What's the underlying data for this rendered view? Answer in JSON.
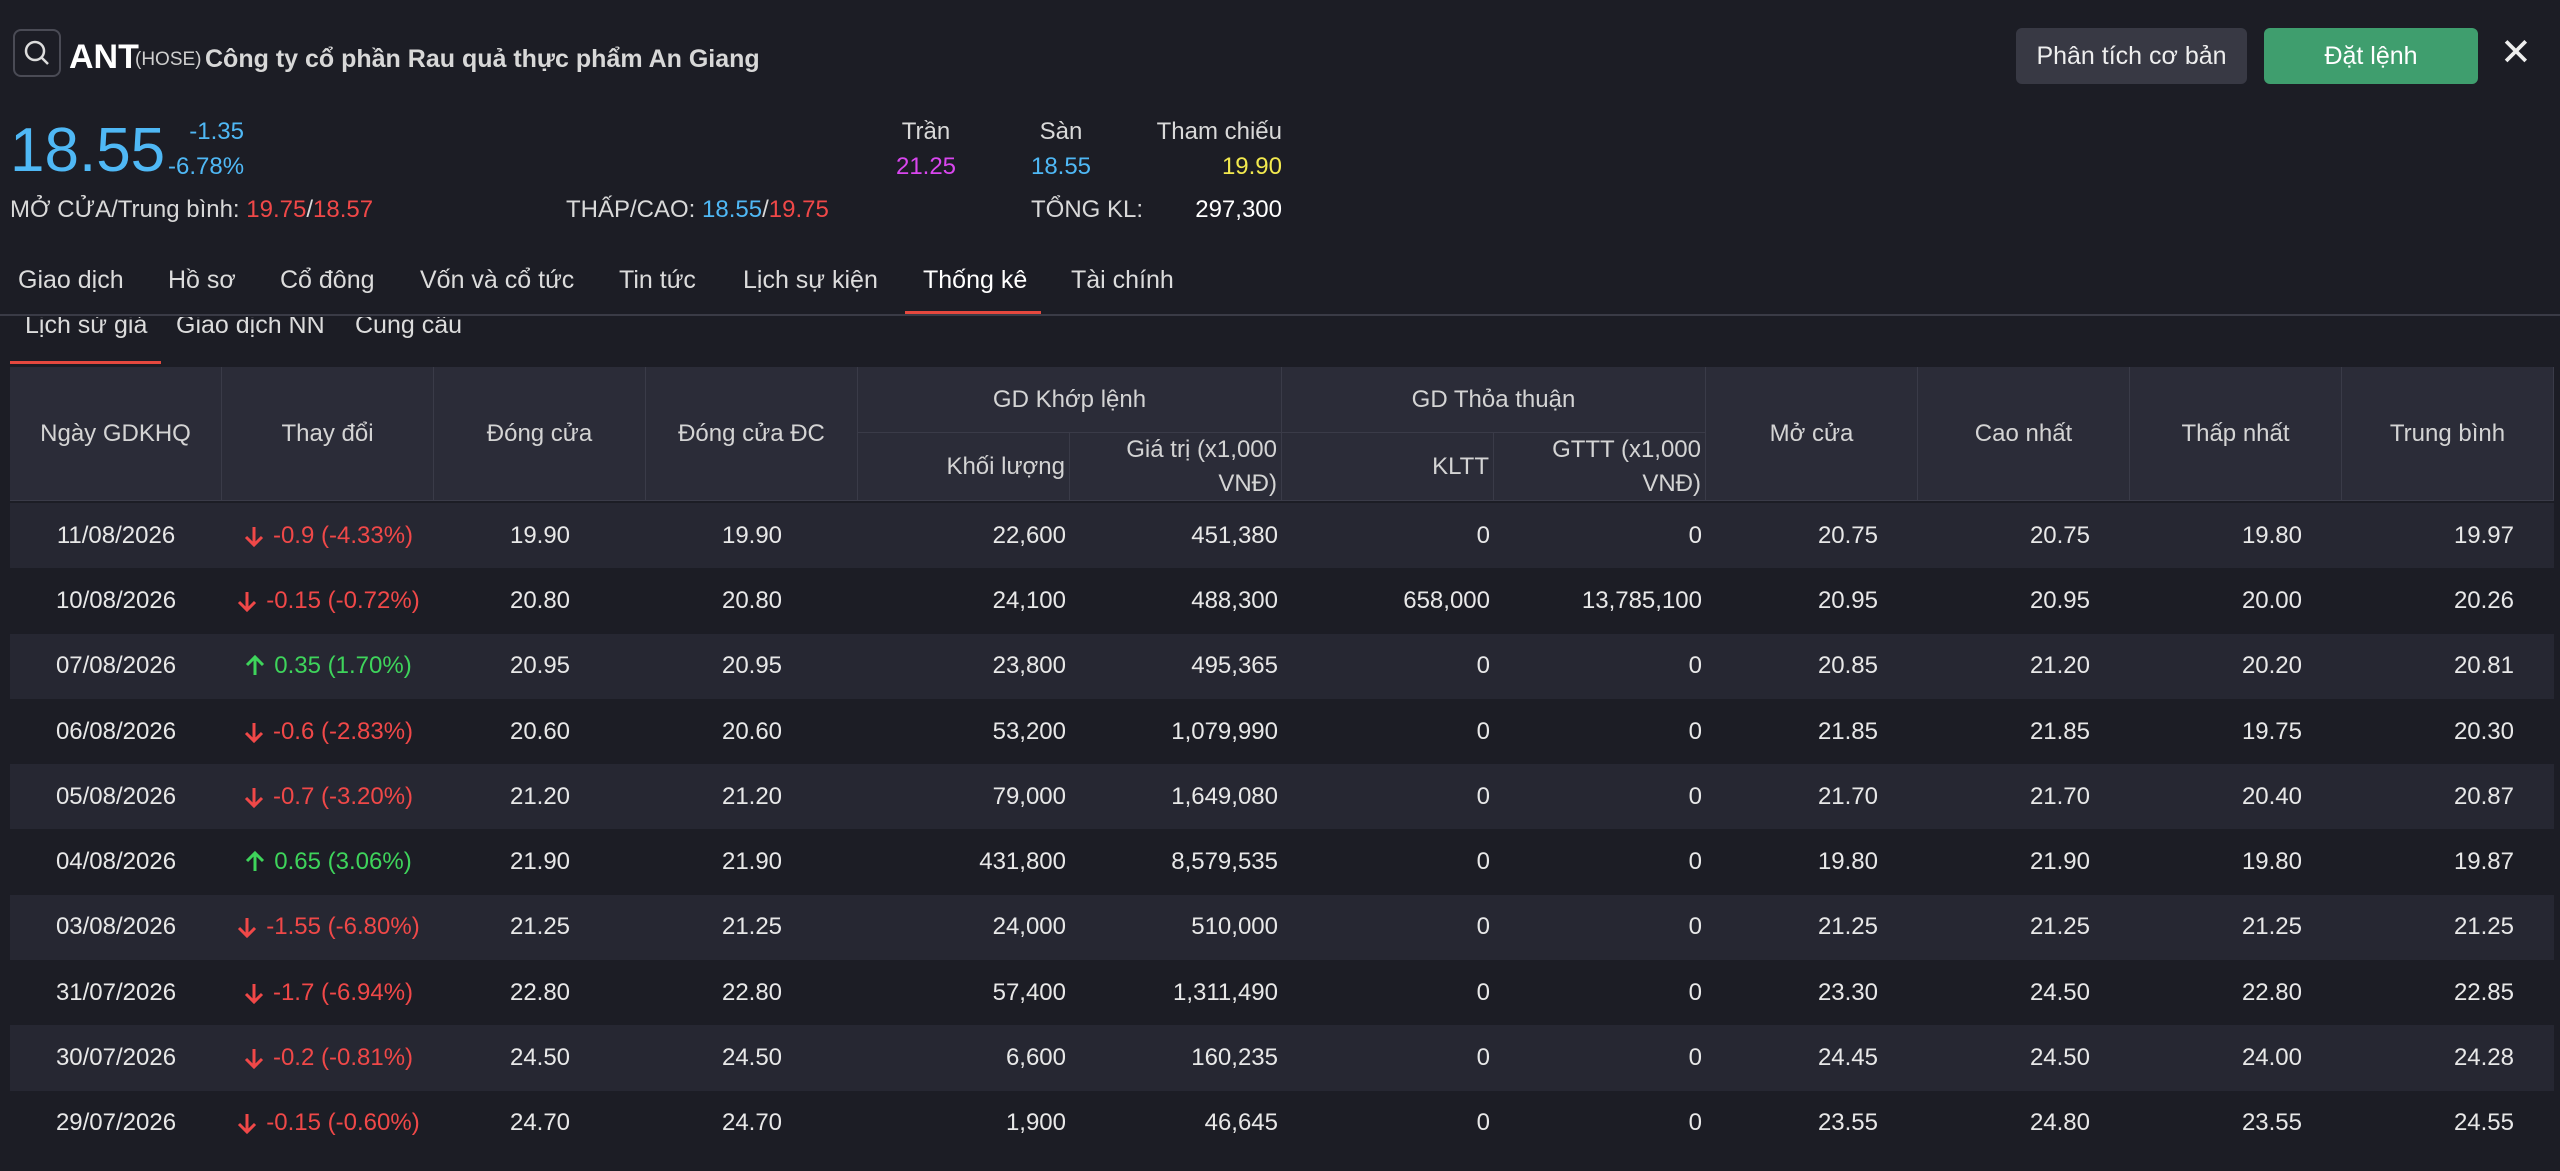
{
  "header": {
    "symbol": "ANT",
    "exchange": "(HOSE)",
    "company": "Công ty cổ phần Rau quả thực phẩm An Giang",
    "buttons": [
      "Phân tích cơ bản",
      "Đặt lệnh"
    ],
    "close": "✕"
  },
  "quote": {
    "price": "18.55",
    "change": "-1.35",
    "change_pct": "-6.78%",
    "ceiling_label": "Trần",
    "ceiling": "21.25",
    "floor_label": "Sàn",
    "floor": "18.55",
    "ref_label": "Tham chiếu",
    "ref": "19.90",
    "open_avg_label": "MỞ CỬA/Trung bình:",
    "open": "19.75",
    "avg": "18.57",
    "low_high_label": "THẤP/CAO:",
    "low": "18.55",
    "high": "19.75",
    "volume_label": "TỔNG KL:",
    "volume": "297,300",
    "separator": "/"
  },
  "tabs": [
    "Giao dịch",
    "Hồ sơ",
    "Cổ đông",
    "Vốn và cổ tức",
    "Tin tức",
    "Lịch sự kiện",
    "Thống kê",
    "Tài chính"
  ],
  "active_tab": 6,
  "subtabs": [
    "Lịch sử giá",
    "Giao dịch NN",
    "Cung cầu"
  ],
  "active_subtab": 0,
  "table": {
    "columns": [
      {
        "label": "Ngày GDKHQ"
      },
      {
        "label": "Thay đổi"
      },
      {
        "label": "Đóng cửa"
      },
      {
        "label": "Đóng cửa ĐC"
      },
      {
        "label": "GD Khớp lệnh",
        "children": [
          "Khối lượng",
          "Giá trị (x1,000 VNĐ)"
        ]
      },
      {
        "label": "GD Thỏa thuận",
        "children": [
          "KLTT",
          "GTTT (x1,000 VNĐ)"
        ]
      },
      {
        "label": "Mở cửa"
      },
      {
        "label": "Cao nhất"
      },
      {
        "label": "Thấp nhất"
      },
      {
        "label": "Trung bình"
      }
    ],
    "rows": [
      [
        "11/08/2026",
        "-0.9 (-4.33%)",
        "19.90",
        "19.90",
        "22,600",
        "451,380",
        "0",
        "0",
        "20.75",
        "20.75",
        "19.80",
        "19.97"
      ],
      [
        "10/08/2026",
        "-0.15 (-0.72%)",
        "20.80",
        "20.80",
        "24,100",
        "488,300",
        "658,000",
        "13,785,100",
        "20.95",
        "20.95",
        "20.00",
        "20.26"
      ],
      [
        "07/08/2026",
        "0.35 (1.70%)",
        "20.95",
        "20.95",
        "23,800",
        "495,365",
        "0",
        "0",
        "20.85",
        "21.20",
        "20.20",
        "20.81"
      ],
      [
        "06/08/2026",
        "-0.6 (-2.83%)",
        "20.60",
        "20.60",
        "53,200",
        "1,079,990",
        "0",
        "0",
        "21.85",
        "21.85",
        "19.75",
        "20.30"
      ],
      [
        "05/08/2026",
        "-0.7 (-3.20%)",
        "21.20",
        "21.20",
        "79,000",
        "1,649,080",
        "0",
        "0",
        "21.70",
        "21.70",
        "20.40",
        "20.87"
      ],
      [
        "04/08/2026",
        "0.65 (3.06%)",
        "21.90",
        "21.90",
        "431,800",
        "8,579,535",
        "0",
        "0",
        "19.80",
        "21.90",
        "19.80",
        "19.87"
      ],
      [
        "03/08/2026",
        "-1.55 (-6.80%)",
        "21.25",
        "21.25",
        "24,000",
        "510,000",
        "0",
        "0",
        "21.25",
        "21.25",
        "21.25",
        "21.25"
      ],
      [
        "31/07/2026",
        "-1.7 (-6.94%)",
        "22.80",
        "22.80",
        "57,400",
        "1,311,490",
        "0",
        "0",
        "23.30",
        "24.50",
        "22.80",
        "22.85"
      ],
      [
        "30/07/2026",
        "-0.2 (-0.81%)",
        "24.50",
        "24.50",
        "6,600",
        "160,235",
        "0",
        "0",
        "24.45",
        "24.50",
        "24.00",
        "24.28"
      ],
      [
        "29/07/2026",
        "-0.15 (-0.60%)",
        "24.70",
        "24.70",
        "1,900",
        "46,645",
        "0",
        "0",
        "23.55",
        "24.80",
        "23.55",
        "24.55"
      ]
    ]
  }
}
